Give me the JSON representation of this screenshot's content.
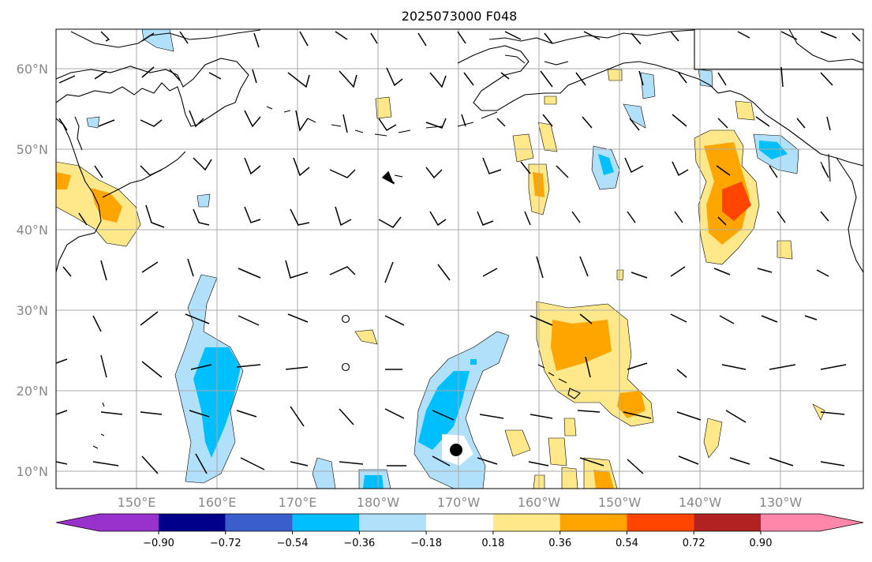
{
  "title": "2025073000 F048",
  "map": {
    "lat_labels": [
      "60°N",
      "50°N",
      "40°N",
      "30°N",
      "20°N",
      "10°N"
    ],
    "lon_labels": [
      "150°E",
      "160°E",
      "170°E",
      "180°W",
      "170°W",
      "160°W",
      "150°W",
      "140°W",
      "130°W"
    ],
    "grid": true,
    "coastline_color": "#000000",
    "grid_color": "#aaaaaa",
    "storm_marker": "filled-circle"
  },
  "colorbar": {
    "tick_labels": [
      "−0.90",
      "−0.72",
      "−0.54",
      "−0.36",
      "−0.18",
      "0.18",
      "0.36",
      "0.54",
      "0.72",
      "0.90"
    ],
    "colors": [
      "#9932cc",
      "#00008b",
      "#3a5fcd",
      "#00bfff",
      "#b0e0fa",
      "#ffffff",
      "#ffe88a",
      "#ffa500",
      "#ff4500",
      "#b22222",
      "#ff88aa"
    ],
    "extend": "both"
  },
  "field_colors": {
    "light_blue": "#b0e0fa",
    "blue": "#00bfff",
    "light_yellow": "#ffe88a",
    "orange": "#ffa500",
    "red_orange": "#ff4500"
  }
}
